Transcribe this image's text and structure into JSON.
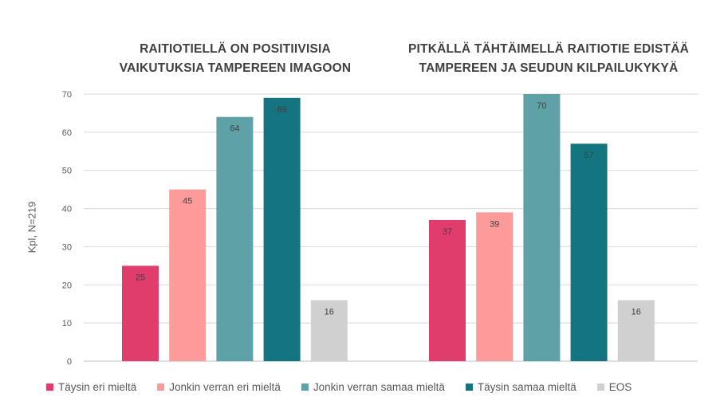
{
  "chart_data": {
    "type": "bar",
    "ylabel": "Kpl, N=219",
    "ylim": [
      0,
      70
    ],
    "yticks": [
      0,
      10,
      20,
      30,
      40,
      50,
      60,
      70
    ],
    "grid": true,
    "legend_position": "bottom",
    "series": [
      {
        "name": "Täysin eri mieltä",
        "color": "#e03c6c"
      },
      {
        "name": "Jonkin verran eri mieltä",
        "color": "#fd9b9b"
      },
      {
        "name": "Jonkin verran samaa mieltä",
        "color": "#5ea2a8"
      },
      {
        "name": "Täysin samaa mieltä",
        "color": "#147480"
      },
      {
        "name": "EOS",
        "color": "#d0d0d0"
      }
    ],
    "groups": [
      {
        "title_lines": [
          "RAITIOTIELLÄ ON POSITIIVISIA",
          "VAIKUTUKSIA TAMPEREEN IMAGOON"
        ],
        "values": [
          25,
          45,
          64,
          69,
          16
        ]
      },
      {
        "title_lines": [
          "PITKÄLLÄ TÄHTÄIMELLÄ RAITIOTIE EDISTÄÄ",
          "TAMPEREEN JA SEUDUN KILPAILUKYKYÄ"
        ],
        "values": [
          37,
          39,
          70,
          57,
          16
        ]
      }
    ]
  }
}
